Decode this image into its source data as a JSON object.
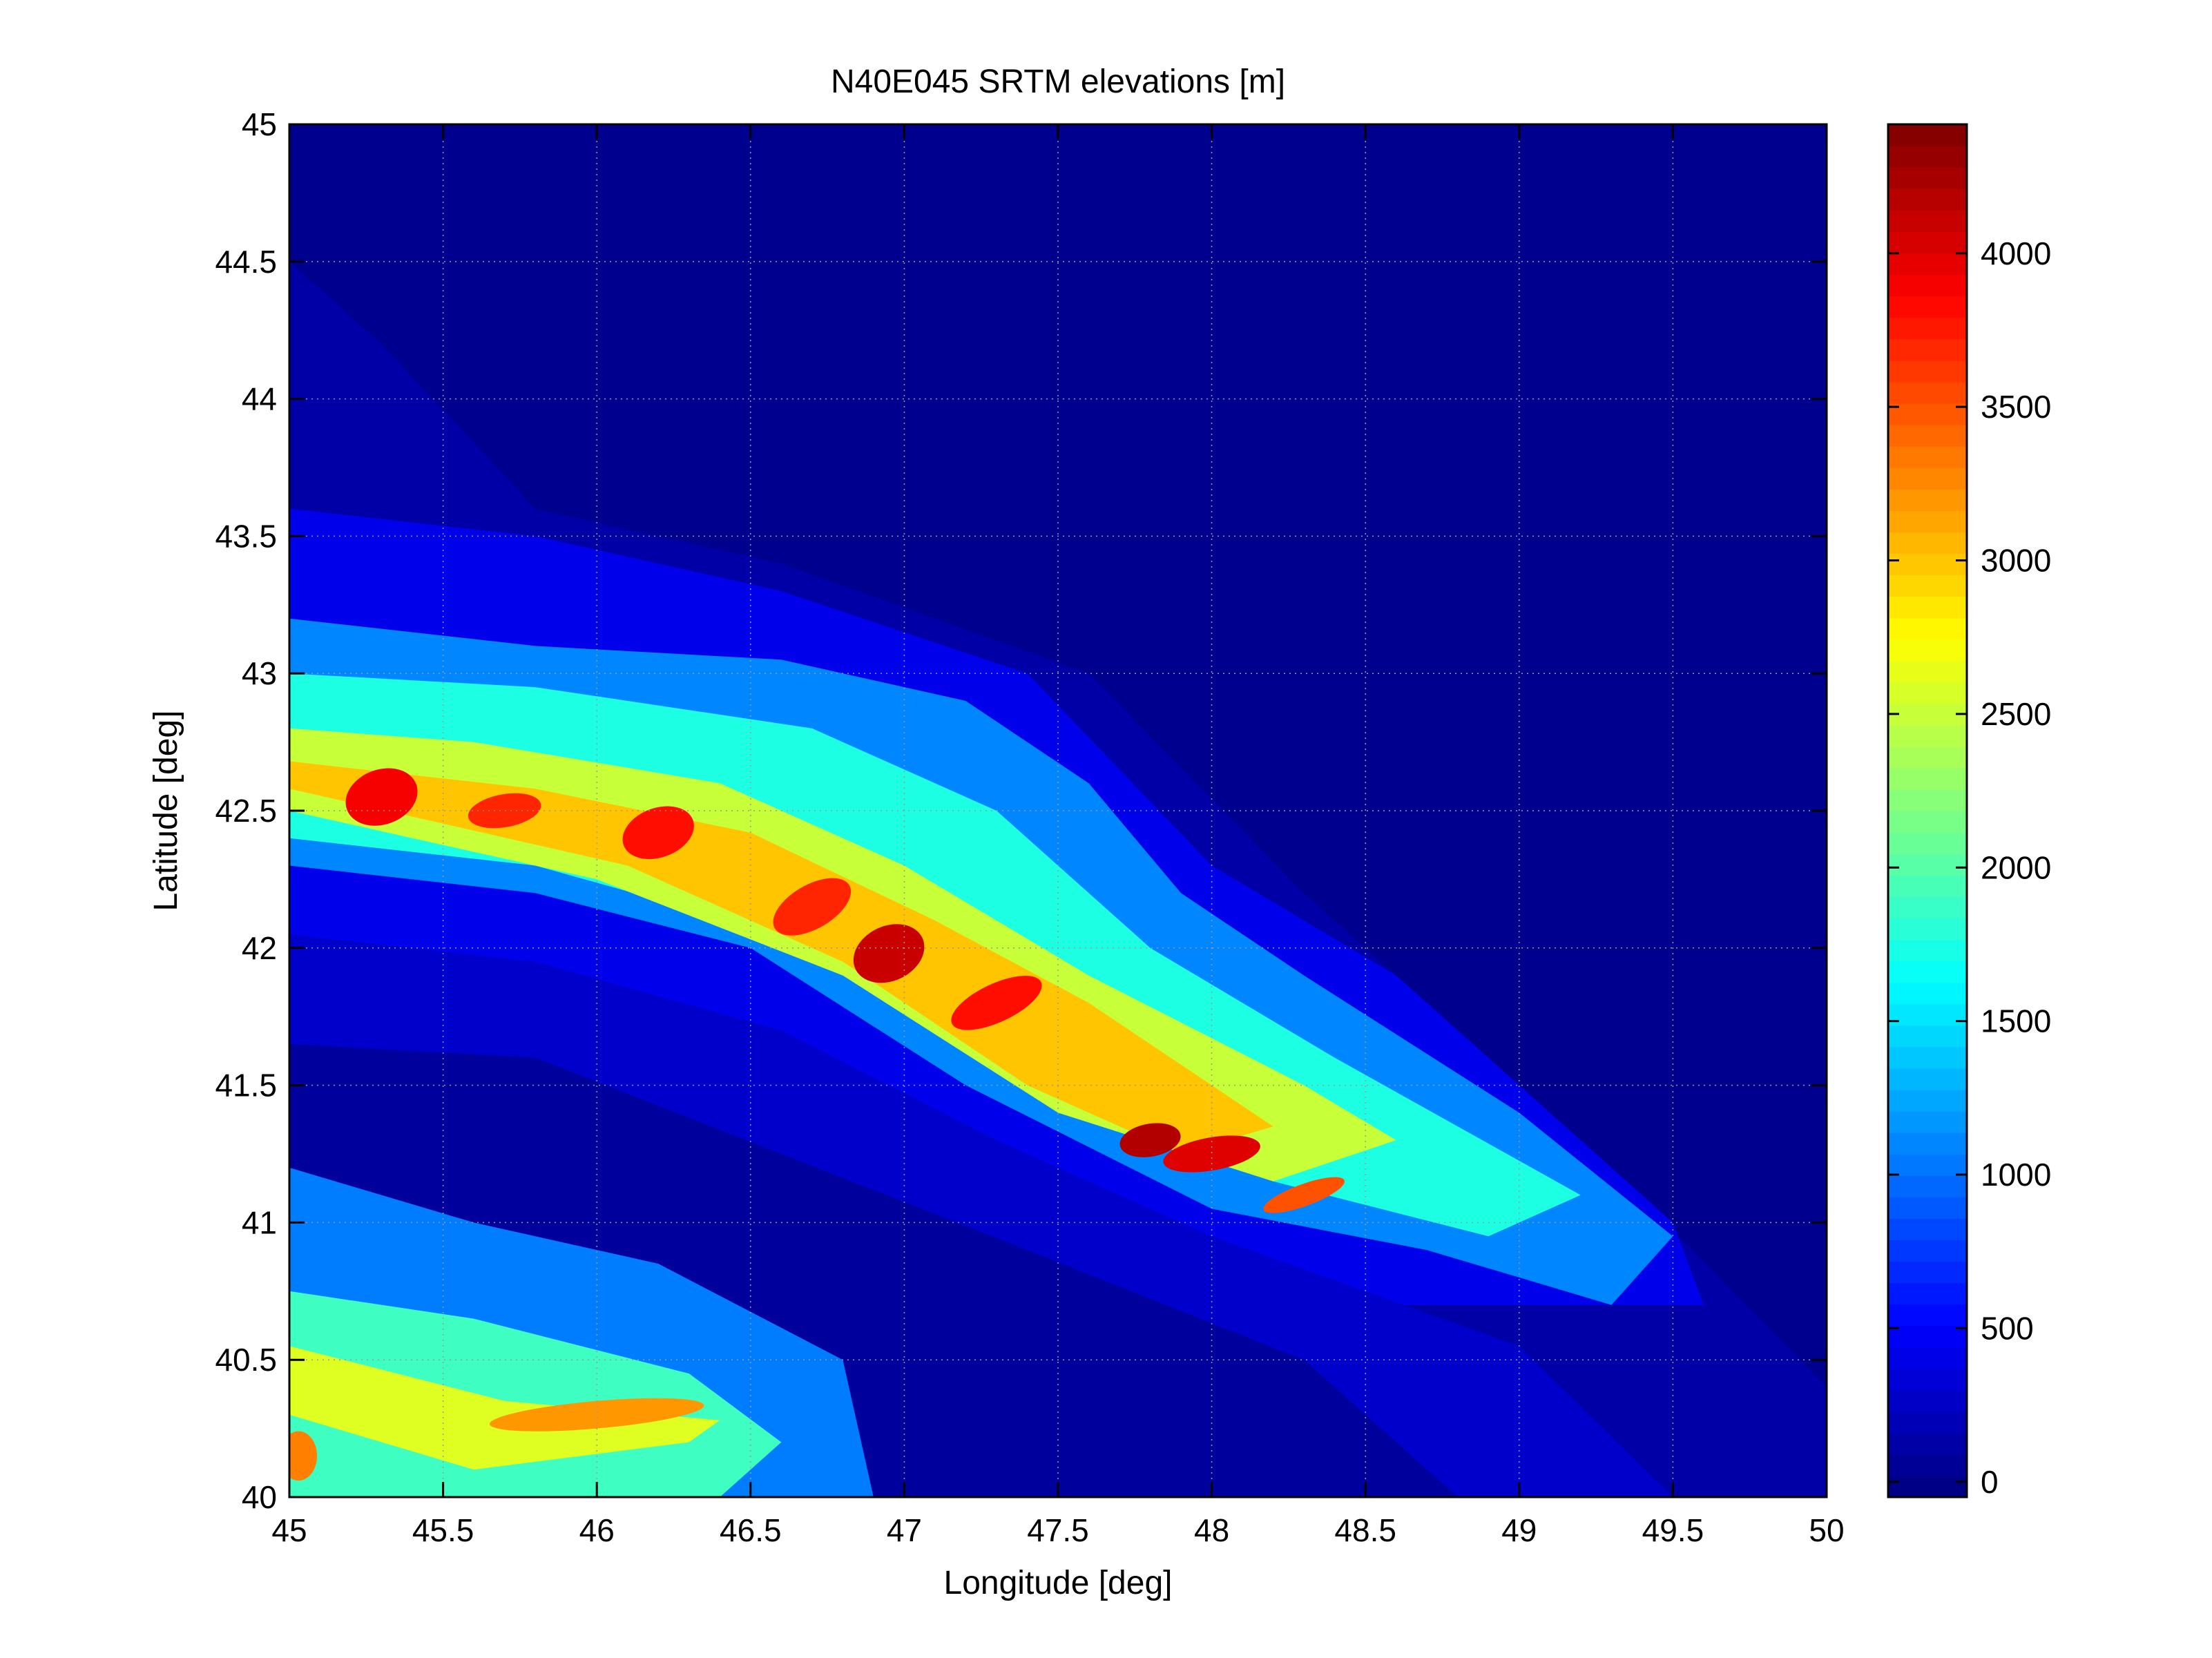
{
  "chart_data": {
    "type": "heatmap",
    "title": "N40E045 SRTM elevations [m]",
    "xlabel": "Longitude [deg]",
    "ylabel": "Latitude [deg]",
    "xlim": [
      45,
      50
    ],
    "ylim": [
      40,
      45
    ],
    "x_ticks": [
      45,
      45.5,
      46,
      46.5,
      47,
      47.5,
      48,
      48.5,
      49,
      49.5,
      50
    ],
    "y_ticks": [
      40,
      40.5,
      41,
      41.5,
      42,
      42.5,
      43,
      43.5,
      44,
      44.5,
      45
    ],
    "x_tick_labels": [
      "45",
      "45.5",
      "46",
      "46.5",
      "47",
      "47.5",
      "48",
      "48.5",
      "49",
      "49.5",
      "50"
    ],
    "y_tick_labels": [
      "40",
      "40.5",
      "41",
      "41.5",
      "42",
      "42.5",
      "43",
      "43.5",
      "44",
      "44.5",
      "45"
    ],
    "grid": true,
    "colormap": "jet",
    "colorbar": {
      "location": "right",
      "limits": [
        -50,
        4420
      ],
      "ticks": [
        0,
        500,
        1000,
        1500,
        2000,
        2500,
        3000,
        3500,
        4000
      ],
      "tick_labels": [
        "0",
        "500",
        "1000",
        "1500",
        "2000",
        "2500",
        "3000",
        "3500",
        "4000"
      ]
    }
  }
}
